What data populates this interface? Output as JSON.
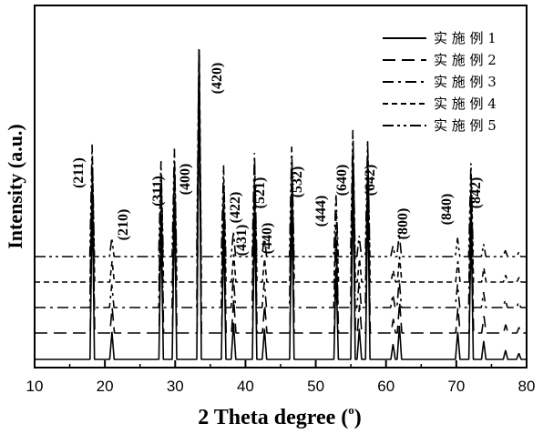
{
  "chart_data": {
    "type": "line",
    "title": "",
    "xlabel": "2 Theta degree (",
    "xlabel_sup": "o",
    "xlabel_end": ")",
    "ylabel": "Intensity (a.u.)",
    "xlim": [
      10,
      80
    ],
    "x_ticks": [
      "10",
      "20",
      "30",
      "40",
      "50",
      "60",
      "70",
      "80"
    ],
    "y_ticks_visible": false,
    "grid": false,
    "legend_position": "top-right",
    "series": [
      {
        "name": "实施例1",
        "dash": "solid"
      },
      {
        "name": "实施例2",
        "dash": "dash"
      },
      {
        "name": "实施例3",
        "dash": "dash-dot"
      },
      {
        "name": "实施例4",
        "dash": "short-dash"
      },
      {
        "name": "实施例5",
        "dash": "dash-dot-dot"
      }
    ],
    "peaks": [
      {
        "two_theta": 18.2,
        "intensity": 0.54,
        "label": "(211)"
      },
      {
        "two_theta": 21.0,
        "intensity": 0.09,
        "label": "(210)"
      },
      {
        "two_theta": 28.0,
        "intensity": 0.46,
        "label": "(311)"
      },
      {
        "two_theta": 29.9,
        "intensity": 0.52,
        "label": "(400)"
      },
      {
        "two_theta": 33.4,
        "intensity": 1.0,
        "label": "(420)"
      },
      {
        "two_theta": 36.9,
        "intensity": 0.44,
        "label": "(422)"
      },
      {
        "two_theta": 38.3,
        "intensity": 0.12,
        "label": "(431)"
      },
      {
        "two_theta": 41.3,
        "intensity": 0.5,
        "label": "(521)"
      },
      {
        "two_theta": 42.7,
        "intensity": 0.1,
        "label": "(440)"
      },
      {
        "two_theta": 46.6,
        "intensity": 0.53,
        "label": "(532)"
      },
      {
        "two_theta": 52.9,
        "intensity": 0.3,
        "label": "(444)"
      },
      {
        "two_theta": 55.3,
        "intensity": 0.61,
        "label": "(640)"
      },
      {
        "two_theta": 56.2,
        "intensity": 0.1,
        "label": ""
      },
      {
        "two_theta": 57.4,
        "intensity": 0.56,
        "label": "(642)"
      },
      {
        "two_theta": 61.0,
        "intensity": 0.05,
        "label": ""
      },
      {
        "two_theta": 61.9,
        "intensity": 0.11,
        "label": "(800)"
      },
      {
        "two_theta": 70.2,
        "intensity": 0.09,
        "label": "(840)"
      },
      {
        "two_theta": 72.1,
        "intensity": 0.45,
        "label": "(842)"
      },
      {
        "two_theta": 73.9,
        "intensity": 0.06,
        "label": ""
      },
      {
        "two_theta": 77.0,
        "intensity": 0.03,
        "label": ""
      },
      {
        "two_theta": 78.9,
        "intensity": 0.02,
        "label": ""
      }
    ]
  }
}
